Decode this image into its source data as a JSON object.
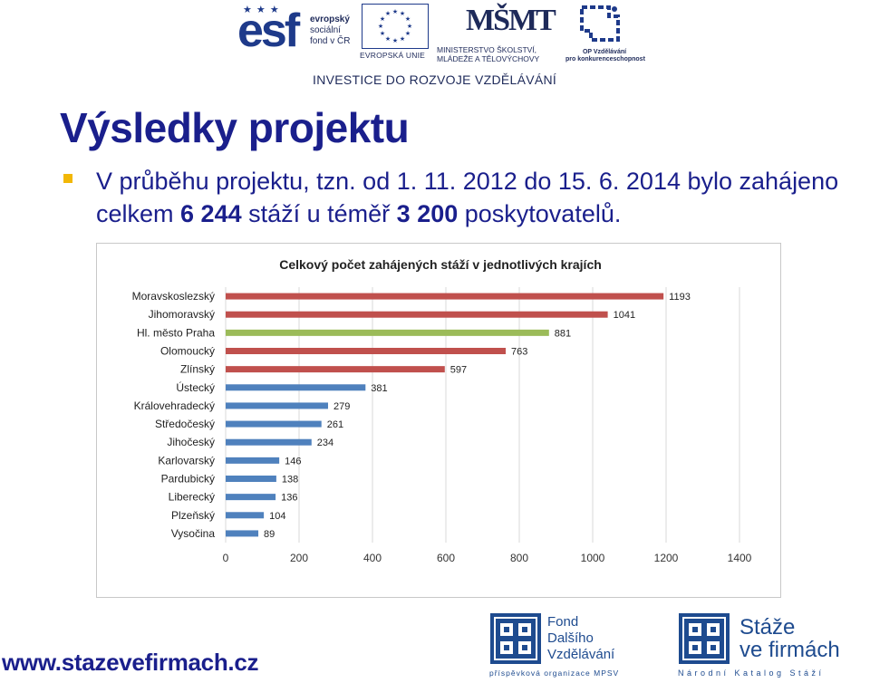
{
  "logos": {
    "esf": {
      "mark": "esf",
      "lines": [
        "evropský",
        "sociální",
        "fond v ČR"
      ]
    },
    "eu": {
      "label": "EVROPSKÁ UNIE"
    },
    "msmt": {
      "mark": "MŠMT",
      "lines": [
        "MINISTERSTVO ŠKOLSTVÍ,",
        "MLÁDEŽE A TĚLOVÝCHOVY"
      ]
    },
    "op": {
      "lines": [
        "OP Vzdělávání",
        "pro konkurenceschopnost"
      ]
    },
    "investice": "INVESTICE DO ROZVOJE VZDĚLÁVÁNÍ",
    "fdv": {
      "lines": [
        "Fond",
        "Dalšího",
        "Vzdělávání"
      ],
      "sub": "příspěvková organizace MPSV"
    },
    "stv": {
      "lines": [
        "Stáže",
        "ve firmách"
      ],
      "sub": "Národní Katalog Stáží"
    }
  },
  "title": "Výsledky projektu",
  "bullet": {
    "part1": "V průběhu projektu, tzn. od 1. 11. 2012 do 15. 6. 2014 bylo zahájeno celkem ",
    "bold1": "6 244",
    "part2": " stáží u téměř ",
    "bold2": "3 200",
    "part3": " poskytovatelů."
  },
  "footer_url": "www.stazevefirmach.cz",
  "colors": {
    "title": "#1a1f8c",
    "bullet": "#f2b705",
    "bar_red": "#c0504d",
    "bar_green": "#9bbb59",
    "bar_blue": "#4f81bd",
    "grid": "#d9d9d9"
  },
  "chart_data": {
    "type": "bar",
    "orientation": "horizontal",
    "title": "Celkový počet zahájených stáží v jednotlivých krajích",
    "categories": [
      "Moravskoslezský",
      "Jihomoravský",
      "Hl. město Praha",
      "Olomoucký",
      "Zlínský",
      "Ústecký",
      "Královehradecký",
      "Středočeský",
      "Jihočeský",
      "Karlovarský",
      "Pardubický",
      "Liberecký",
      "Plzeňský",
      "Vysočina"
    ],
    "values": [
      1193,
      1041,
      881,
      763,
      597,
      381,
      279,
      261,
      234,
      146,
      138,
      136,
      104,
      89
    ],
    "bar_colors": [
      "#c0504d",
      "#c0504d",
      "#9bbb59",
      "#c0504d",
      "#c0504d",
      "#4f81bd",
      "#4f81bd",
      "#4f81bd",
      "#4f81bd",
      "#4f81bd",
      "#4f81bd",
      "#4f81bd",
      "#4f81bd",
      "#4f81bd"
    ],
    "xlim": [
      0,
      1400
    ],
    "xticks": [
      0,
      200,
      400,
      600,
      800,
      1000,
      1200,
      1400
    ],
    "grid": true,
    "legend": "none",
    "data_labels": true
  }
}
